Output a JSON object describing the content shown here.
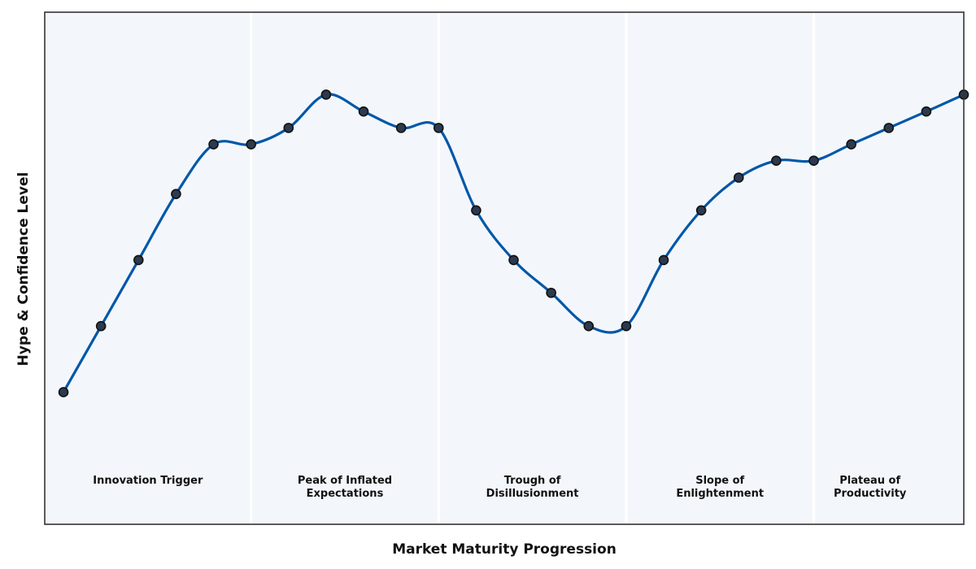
{
  "chart_data": {
    "type": "line",
    "title": "",
    "xlabel": "Market Maturity Progression",
    "ylabel": "Hype & Confidence Level",
    "xlim": [
      0,
      24.5
    ],
    "ylim": [
      0,
      100
    ],
    "grid": false,
    "colors": {
      "line": "#0057a8",
      "marker_fill": "#2b3a4e",
      "marker_edge": "#111111",
      "plot_background": "#f3f7fb",
      "divider": "#ffffff",
      "frame": "#333333"
    },
    "phases": [
      {
        "label_lines": [
          "Innovation Trigger"
        ],
        "start": 0,
        "end": 5.5
      },
      {
        "label_lines": [
          "Peak of Inflated",
          "Expectations"
        ],
        "start": 5.5,
        "end": 10.5
      },
      {
        "label_lines": [
          "Trough of",
          "Disillusionment"
        ],
        "start": 10.5,
        "end": 15.5
      },
      {
        "label_lines": [
          "Slope of",
          "Enlightenment"
        ],
        "start": 15.5,
        "end": 20.5
      },
      {
        "label_lines": [
          "Plateau of",
          "Productivity"
        ],
        "start": 20.5,
        "end": 24.5
      }
    ],
    "series": [
      {
        "x": [
          0.5,
          1.5,
          2.5,
          3.5,
          4.5,
          5.5,
          6.5,
          7.5,
          8.5,
          9.5,
          10.5,
          11.5,
          12.5,
          13.5,
          14.5,
          15.5,
          16.5,
          17.5,
          18.5,
          19.5,
          20.5,
          21.5,
          22.5,
          23.5,
          24.5
        ],
        "values": [
          25.8,
          38.7,
          51.6,
          64.5,
          74.2,
          74.2,
          77.4,
          83.9,
          80.6,
          77.4,
          77.4,
          61.3,
          51.6,
          45.2,
          38.7,
          38.7,
          51.6,
          61.3,
          67.7,
          71.0,
          71.0,
          74.2,
          77.4,
          80.6,
          83.9
        ]
      }
    ]
  }
}
